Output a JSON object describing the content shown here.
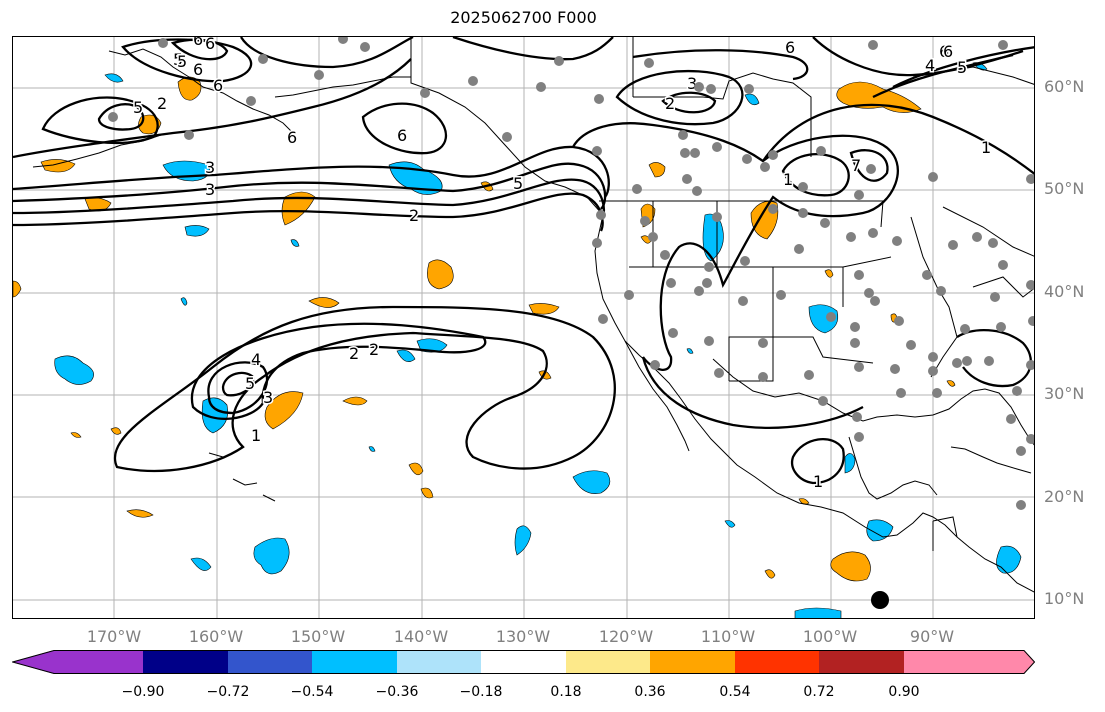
{
  "title": "2025062700 F000",
  "lat_labels": [
    "60°N",
    "50°N",
    "40°N",
    "30°N",
    "20°N",
    "10°N"
  ],
  "lon_labels": [
    "170°W",
    "160°W",
    "150°W",
    "140°W",
    "130°W",
    "120°W",
    "110°W",
    "100°W",
    "90°W"
  ],
  "colorbar": {
    "ticks": [
      "−0.90",
      "−0.72",
      "−0.54",
      "−0.36",
      "−0.18",
      "0.18",
      "0.36",
      "0.54",
      "0.72",
      "0.90"
    ],
    "colors": [
      "#9933cc",
      "#000088",
      "#3355cc",
      "#00bfff",
      "#aee3fa",
      "#ffffff",
      "#fde98a",
      "#ffa500",
      "#ff3300",
      "#b22222",
      "#ff88aa"
    ]
  },
  "contour_labels": [
    "6",
    "5",
    "6",
    "5",
    "6",
    "6",
    "3",
    "3",
    "2",
    "6",
    "5",
    "3",
    "2",
    "6",
    "6",
    "5",
    "4",
    "7",
    "1",
    "1",
    "2",
    "4",
    "5",
    "3",
    "1",
    "2",
    "1",
    "5",
    "6",
    "6",
    "2"
  ],
  "colors": {
    "positive": "#ffa500",
    "negative": "#00bfff",
    "grid": "#b3b3b3",
    "station": "#808080",
    "marker": "#000000"
  }
}
